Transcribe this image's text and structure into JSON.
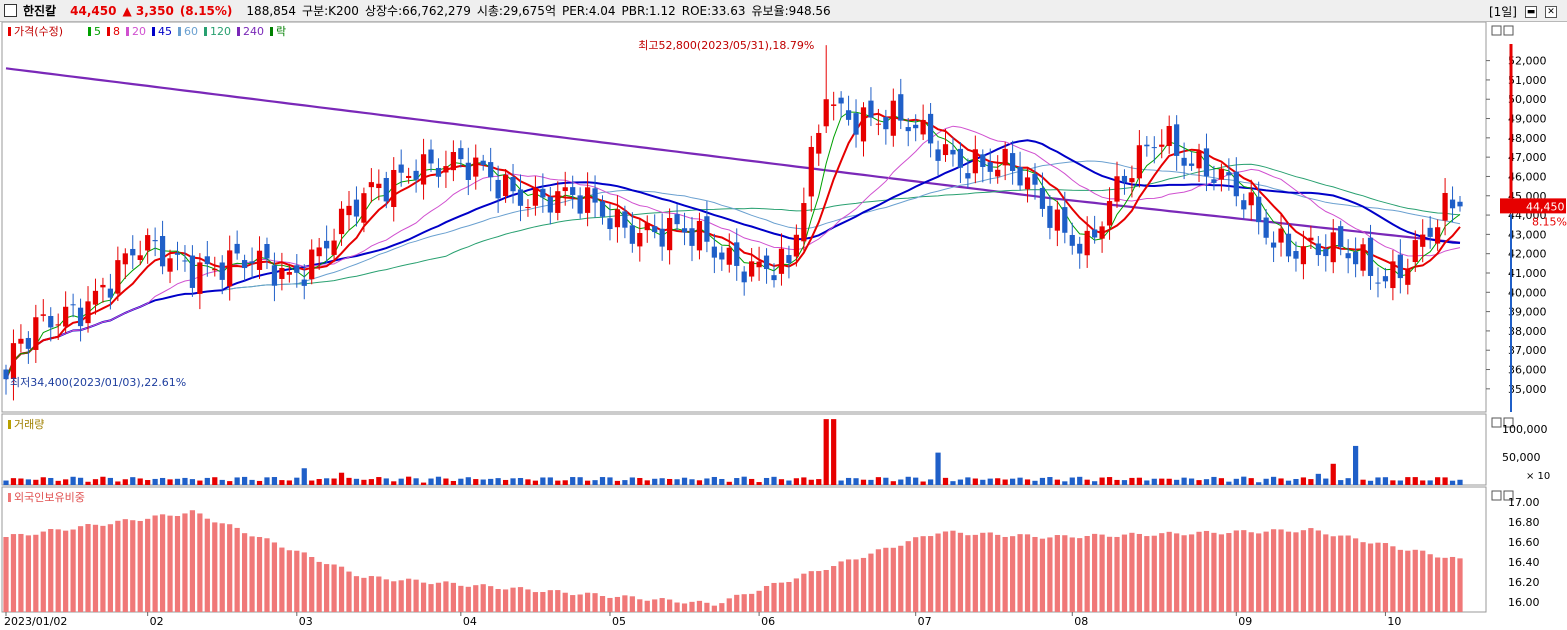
{
  "header": {
    "name": "한진칼",
    "price": "44,450",
    "change": "▲ 3,350",
    "change_pct": "(8.15%)",
    "volume": "188,854",
    "market": "구분:K200",
    "listed": "상장수:66,762,279",
    "market_cap": "시총:29,675억",
    "per": "PER:4.04",
    "pbr": "PBR:1.12",
    "roe": "ROE:33.63",
    "reserve": "유보율:948.56",
    "period": "[1일]"
  },
  "legend": {
    "price_label": "가격(수정)",
    "ma": [
      {
        "label": "5",
        "color": "#00a000"
      },
      {
        "label": "8",
        "color": "#e60000"
      },
      {
        "label": "20",
        "color": "#d050d0"
      },
      {
        "label": "45",
        "color": "#0000c8"
      },
      {
        "label": "60",
        "color": "#6aa0d0"
      },
      {
        "label": "120",
        "color": "#28a070"
      },
      {
        "label": "240",
        "color": "#7a28b8"
      }
    ],
    "fall_label": "락",
    "volume_label": "거래량",
    "foreign_label": "외국인보유비중"
  },
  "annotations": {
    "high": "최고52,800(2023/05/31),18.79%",
    "low": "최저34,400(2023/01/03),22.61%",
    "last_price": "44,450",
    "last_pct": "8.15%",
    "vol_unit": "× 10"
  },
  "colors": {
    "up": "#e60000",
    "down": "#1f5fc8",
    "foreign": "#f07878",
    "ma240": "#7a28b8",
    "ma45": "#0000c8",
    "ma8": "#e60000",
    "ma5": "#00a000",
    "ma20": "#d050d0",
    "ma60": "#6aa0d0",
    "ma120": "#28a070"
  },
  "chart_data": [
    {
      "type": "candlestick",
      "title": "",
      "x_labels": [
        "2023/01/02",
        "02",
        "03",
        "04",
        "05",
        "06",
        "07",
        "08",
        "09",
        "10"
      ],
      "y_ticks": [
        35000,
        36000,
        37000,
        38000,
        39000,
        40000,
        41000,
        42000,
        43000,
        44000,
        45000,
        46000,
        47000,
        48000,
        49000,
        50000,
        51000,
        52000
      ],
      "y_tick_labels": [
        "35,000",
        "36,000",
        "37,000",
        "38,000",
        "39,000",
        "40,000",
        "41,000",
        "42,000",
        "43,000",
        "44,000",
        "45,000",
        "46,000",
        "47,000",
        "48,000",
        "49,000",
        "50,000",
        "51,000",
        "52,000"
      ],
      "ylim": [
        33800,
        54000
      ],
      "key_points": [
        {
          "month": "2023/01",
          "close": 36500
        },
        {
          "month": "2023/01 end",
          "close": 42000
        },
        {
          "month": "2023/02",
          "close": 41000
        },
        {
          "month": "2023/03",
          "close": 47000
        },
        {
          "month": "2023/04",
          "close": 43500
        },
        {
          "month": "2023/05",
          "close": 41000
        },
        {
          "month": "2023/05/31",
          "close": 50000
        },
        {
          "month": "2023/06",
          "close": 48500
        },
        {
          "month": "2023/07",
          "close": 46000
        },
        {
          "month": "2023/08",
          "close": 42500
        },
        {
          "month": "2023/08 mid",
          "close": 48500
        },
        {
          "month": "2023/09",
          "close": 43000
        },
        {
          "month": "2023/10",
          "close": 41000
        },
        {
          "month": "2023/10 last",
          "close": 44450
        }
      ],
      "high": {
        "date": "2023/05/31",
        "value": 52800
      },
      "low": {
        "date": "2023/01/03",
        "value": 34400
      },
      "last": 44450
    },
    {
      "type": "bar",
      "title": "",
      "y_ticks": [
        50000,
        100000
      ],
      "y_tick_labels": [
        "50,000",
        "100,000"
      ],
      "ylim": [
        0,
        120000
      ]
    },
    {
      "type": "bar",
      "title": "",
      "y_ticks": [
        16.0,
        16.2,
        16.4,
        16.6,
        16.8,
        17.0
      ],
      "y_tick_labels": [
        "16.00",
        "16.20",
        "16.40",
        "16.60",
        "16.80",
        "17.00"
      ],
      "ylim": [
        15.9,
        17.15
      ],
      "key_points": [
        {
          "month": "2023/01",
          "value": 16.65
        },
        {
          "month": "2023/02",
          "value": 16.9
        },
        {
          "month": "2023/03",
          "value": 16.25
        },
        {
          "month": "2023/05",
          "value": 15.98
        },
        {
          "month": "2023/06",
          "value": 16.7
        },
        {
          "month": "2023/07",
          "value": 16.65
        },
        {
          "month": "2023/09",
          "value": 16.72
        },
        {
          "month": "2023/10",
          "value": 16.42
        }
      ]
    }
  ]
}
